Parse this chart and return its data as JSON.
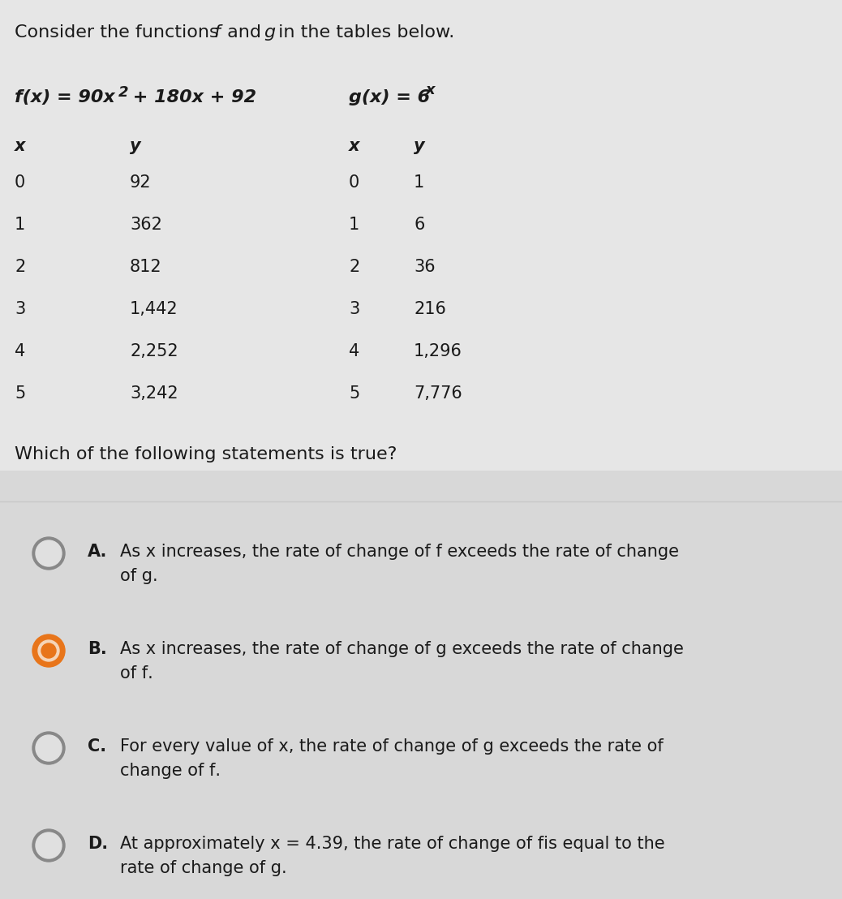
{
  "title": "Consider the functions ​f​ and ​g​ in the tables below.",
  "bg_color": "#e0e0e0",
  "f_x": [
    "0",
    "1",
    "2",
    "3",
    "4",
    "5"
  ],
  "f_y": [
    "92",
    "362",
    "812",
    "1,442",
    "2,252",
    "3,242"
  ],
  "g_x": [
    "0",
    "1",
    "2",
    "3",
    "4",
    "5"
  ],
  "g_y": [
    "1",
    "6",
    "36",
    "216",
    "1,296",
    "7,776"
  ],
  "question": "Which of the following statements is true?",
  "divider_color": "#c8c8c8",
  "options": [
    {
      "letter": "A.",
      "line1": "As ​x​ increases, the rate of change of ​f​ exceeds the rate of change",
      "line2": "of ​g​.",
      "selected": false
    },
    {
      "letter": "B.",
      "line1": "As ​x​ increases, the rate of change of ​g​ exceeds the rate of change",
      "line2": "of ​f​.",
      "selected": true
    },
    {
      "letter": "C.",
      "line1": "For every value of ​x​, the rate of change of ​g​ exceeds the rate of",
      "line2": "change of ​f​.",
      "selected": false
    },
    {
      "letter": "D.",
      "line1": "At approximately ​x​​ = 4.39, the rate of change of ​f​is equal to the",
      "line2": "rate of change of ​g​.",
      "selected": false
    }
  ],
  "radio_border_color": "#888888",
  "radio_selected_outer": "#e8751a",
  "radio_selected_inner": "#e8751a",
  "text_color": "#1a1a1a",
  "font_size_title": 16,
  "font_size_formula": 15,
  "font_size_table": 15,
  "font_size_question": 16,
  "font_size_options": 15
}
